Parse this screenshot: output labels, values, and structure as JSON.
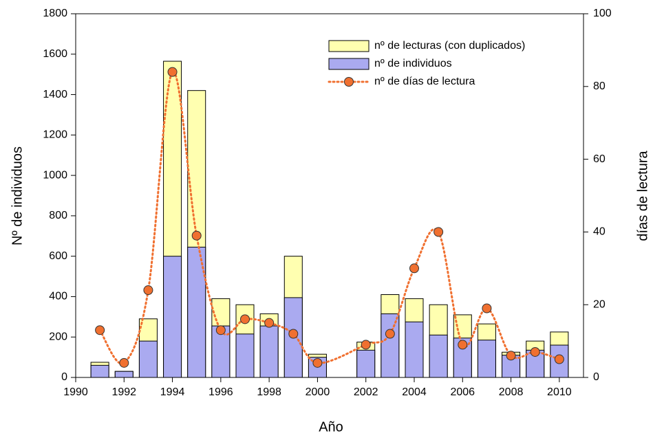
{
  "chart_data": {
    "type": "bar",
    "x_label": "Año",
    "y_label": "Nº de individuos",
    "y2_label": "días de lectura",
    "x": [
      1991,
      1992,
      1993,
      1994,
      1995,
      1996,
      1997,
      1998,
      1999,
      2000,
      2002,
      2003,
      2004,
      2005,
      2006,
      2007,
      2008,
      2009,
      2010
    ],
    "xlim": [
      1990,
      2011
    ],
    "xticks": [
      1990,
      1992,
      1994,
      1996,
      1998,
      2000,
      2002,
      2004,
      2006,
      2008,
      2010
    ],
    "ylim": [
      0,
      1800
    ],
    "yticks": [
      0,
      200,
      400,
      600,
      800,
      1000,
      1200,
      1400,
      1600,
      1800
    ],
    "y2lim": [
      0,
      100
    ],
    "y2ticks": [
      0,
      20,
      40,
      60,
      80,
      100
    ],
    "legend": "upper right",
    "series": [
      {
        "name": "nº de lecturas (con duplicados)",
        "color": "#ffffb0",
        "values": [
          75,
          30,
          290,
          1565,
          1420,
          390,
          360,
          315,
          600,
          115,
          175,
          410,
          390,
          360,
          310,
          265,
          125,
          180,
          225
        ]
      },
      {
        "name": "nº de individuos",
        "color": "#aaaaf0",
        "values": [
          60,
          30,
          180,
          600,
          645,
          255,
          215,
          255,
          395,
          100,
          135,
          315,
          275,
          210,
          195,
          185,
          110,
          135,
          160
        ]
      },
      {
        "name": "nº de días de lectura",
        "type": "line",
        "axis": "y2",
        "color": "#f07030",
        "values": [
          13,
          4,
          24,
          84,
          39,
          13,
          16,
          15,
          12,
          4,
          9,
          12,
          30,
          40,
          9,
          19,
          6,
          7,
          5
        ]
      }
    ]
  }
}
